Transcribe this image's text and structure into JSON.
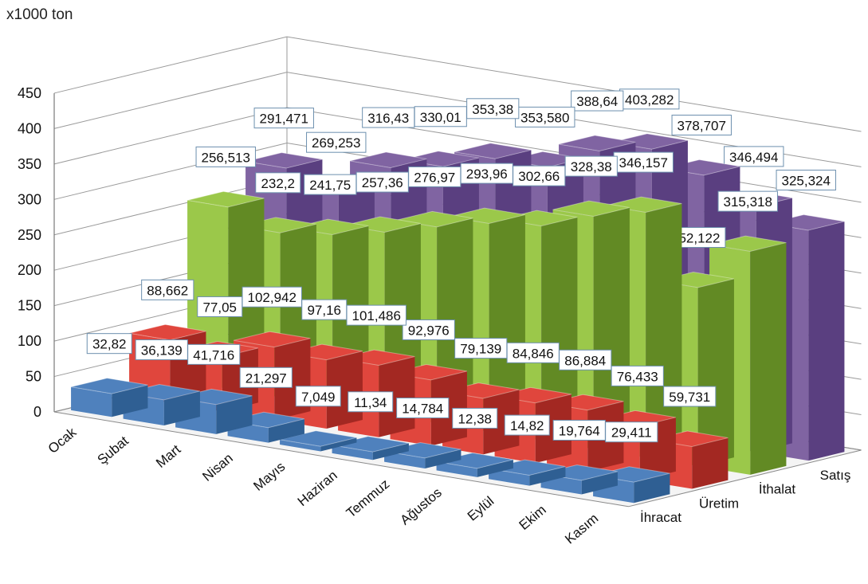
{
  "chart_data": {
    "type": "bar",
    "unit_label": "x1000 ton",
    "categories": [
      "Ocak",
      "Şubat",
      "Mart",
      "Nisan",
      "Mayıs",
      "Haziran",
      "Temmuz",
      "Ağustos",
      "Eylül",
      "Ekim",
      "Kasım"
    ],
    "yticks": [
      "0",
      "50",
      "100",
      "150",
      "200",
      "250",
      "300",
      "350",
      "400",
      "450"
    ],
    "ylim": [
      0,
      450
    ],
    "grid": true,
    "series": [
      {
        "name": "İhracat",
        "color": "#4f81bd",
        "dark": "#2f5f93",
        "values": [
          32.82,
          36.139,
          41.716,
          21.297,
          7.049,
          11.34,
          14.784,
          12.38,
          14.82,
          19.764,
          29.411
        ],
        "labels": [
          "32,82",
          "36,139",
          "41,716",
          "21,297",
          "7,049",
          "11,34",
          "14,784",
          "12,38",
          "14,82",
          "19,764",
          "29,411"
        ]
      },
      {
        "name": "Üretim",
        "color": "#e0463d",
        "dark": "#a32822",
        "values": [
          88.662,
          77.05,
          102.942,
          97.16,
          101.486,
          92.976,
          79.139,
          84.846,
          86.884,
          76.433,
          59.731
        ],
        "labels": [
          "88,662",
          "77,05",
          "102,942",
          "97,16",
          "101,486",
          "92,976",
          "79,139",
          "84,846",
          "86,884",
          "76,433",
          "59,731"
        ]
      },
      {
        "name": "İthalat",
        "color": "#9bc84a",
        "dark": "#628a24",
        "values": [
          256.513,
          232.2,
          241.75,
          257.36,
          276.97,
          293.96,
          302.66,
          328.38,
          346.157,
          252.122,
          315.318
        ],
        "labels": [
          "256,513",
          "232,2",
          "241,75",
          "257,36",
          "276,97",
          "293,96",
          "302,66",
          "328,38",
          "346,157",
          "252,122",
          "315,318"
        ]
      },
      {
        "name": "Satış",
        "color": "#8064a2",
        "dark": "#5a3f80",
        "values": [
          291.471,
          269.253,
          316.43,
          330.01,
          353.38,
          353.58,
          388.64,
          403.282,
          378.707,
          346.494,
          325.324
        ],
        "labels": [
          "291,471",
          "269,253",
          "316,43",
          "330,01",
          "353,38",
          "353,580",
          "388,64",
          "403,282",
          "378,707",
          "346,494",
          "325,324"
        ]
      }
    ]
  }
}
